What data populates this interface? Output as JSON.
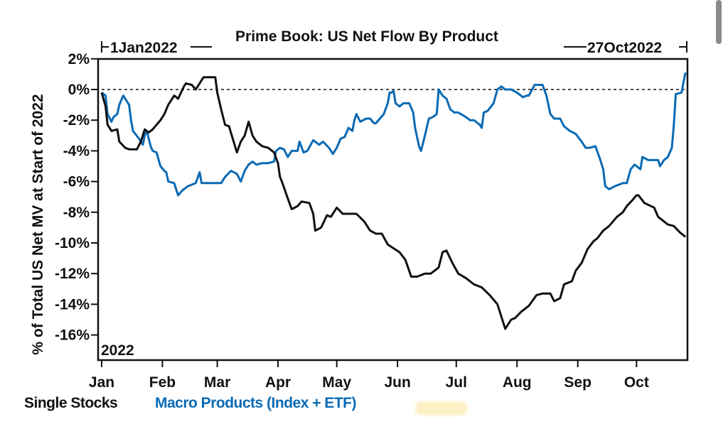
{
  "chart_data": {
    "type": "line",
    "title": "Prime Book: US Net Flow By Product",
    "start_label": "1Jan2022",
    "end_label": "27Oct2022",
    "year_label": "2022",
    "xlabel": "",
    "ylabel": "% of Total US Net MV at Start of 2022",
    "x_unit": "day_of_year_2022",
    "xlim": [
      0,
      299
    ],
    "ylim": [
      -17.5,
      2
    ],
    "y_ticks": [
      2,
      0,
      -2,
      -4,
      -6,
      -8,
      -10,
      -12,
      -14,
      -16
    ],
    "y_tick_labels": [
      "2%",
      "0%",
      "-2%",
      "-4%",
      "-6%",
      "-8%",
      "-10%",
      "-12%",
      "-14%",
      "-16%"
    ],
    "x_ticks": [
      0,
      31,
      59,
      90,
      120,
      151,
      181,
      212,
      243,
      273
    ],
    "x_tick_labels": [
      "Jan",
      "Feb",
      "Mar",
      "Apr",
      "May",
      "Jun",
      "Jul",
      "Aug",
      "Sep",
      "Oct"
    ],
    "reference_line": {
      "y": 0,
      "style": "dashed"
    },
    "grid": false,
    "legend_position": "bottom-left",
    "series": [
      {
        "name": "Single Stocks",
        "color": "#111111",
        "x": [
          0,
          2,
          3,
          5,
          8,
          9,
          12,
          14,
          18,
          20,
          22,
          24,
          26,
          30,
          32,
          34,
          37,
          39,
          42,
          43,
          46,
          48,
          52,
          55,
          58,
          59,
          61,
          63,
          65,
          69,
          71,
          73,
          75,
          77,
          79,
          82,
          85,
          88,
          90,
          91,
          92,
          95,
          97,
          100,
          102,
          106,
          108,
          109,
          112,
          115,
          117,
          120,
          123,
          127,
          130,
          134,
          137,
          140,
          143,
          146,
          152,
          155,
          158,
          161,
          165,
          168,
          172,
          174,
          176,
          179,
          182,
          186,
          190,
          194,
          198,
          202,
          205,
          206,
          209,
          211,
          214,
          218,
          222,
          225,
          229,
          231,
          234,
          236,
          240,
          242,
          245,
          248,
          251,
          253,
          256,
          259,
          263,
          266,
          268,
          271,
          273,
          274,
          277,
          282,
          284,
          289,
          292,
          295,
          298
        ],
        "values": [
          -0.2,
          -1.1,
          -2.3,
          -2.7,
          -2.6,
          -3.4,
          -3.8,
          -3.9,
          -3.9,
          -3.4,
          -2.6,
          -2.8,
          -2.6,
          -2.0,
          -1.6,
          -1.0,
          -0.4,
          -0.6,
          0.2,
          0.4,
          0.3,
          0.0,
          0.8,
          0.8,
          0.8,
          -0.2,
          -1.3,
          -2.3,
          -2.4,
          -4.1,
          -3.4,
          -3.0,
          -2.1,
          -3.0,
          -3.4,
          -3.7,
          -3.8,
          -4.1,
          -4.8,
          -5.7,
          -6.0,
          -7.1,
          -7.8,
          -7.6,
          -7.3,
          -7.4,
          -8.1,
          -9.2,
          -9.0,
          -8.2,
          -8.3,
          -7.7,
          -8.1,
          -8.1,
          -8.1,
          -8.6,
          -9.2,
          -9.4,
          -9.4,
          -10.1,
          -10.6,
          -11.1,
          -12.2,
          -12.2,
          -12.0,
          -12.0,
          -11.6,
          -10.6,
          -10.5,
          -11.3,
          -12.0,
          -12.3,
          -12.7,
          -12.9,
          -13.4,
          -14.0,
          -15.2,
          -15.6,
          -15.0,
          -14.9,
          -14.5,
          -14.1,
          -13.4,
          -13.3,
          -13.3,
          -13.8,
          -13.6,
          -12.7,
          -12.5,
          -11.8,
          -11.3,
          -10.4,
          -9.9,
          -9.7,
          -9.2,
          -8.9,
          -8.3,
          -8.0,
          -7.6,
          -7.2,
          -6.9,
          -6.9,
          -7.4,
          -7.7,
          -8.3,
          -8.8,
          -8.9,
          -9.3,
          -9.6
        ]
      },
      {
        "name": "Macro Products (Index + ETF)",
        "color": "#0a6ab4",
        "x": [
          0,
          2,
          3,
          5,
          6,
          8,
          9,
          11,
          12,
          14,
          15,
          16,
          19,
          21,
          22,
          23,
          25,
          26,
          28,
          30,
          32,
          33,
          34,
          37,
          39,
          41,
          44,
          48,
          50,
          51,
          53,
          57,
          61,
          63,
          66,
          69,
          71,
          73,
          75,
          77,
          79,
          82,
          85,
          88,
          89,
          91,
          93,
          95,
          97,
          100,
          101,
          103,
          105,
          108,
          111,
          113,
          116,
          118,
          120,
          122,
          124,
          126,
          128,
          129,
          130,
          132,
          135,
          137,
          139,
          140,
          142,
          144,
          146,
          147,
          148,
          149,
          150,
          152,
          154,
          157,
          159,
          160,
          162,
          163,
          165,
          167,
          169,
          171,
          172,
          174,
          176,
          178,
          180,
          182,
          186,
          188,
          190,
          193,
          194,
          195,
          197,
          200,
          202,
          204,
          206,
          209,
          212,
          215,
          217,
          218,
          221,
          225,
          227,
          229,
          231,
          234,
          236,
          239,
          242,
          245,
          247,
          249,
          252,
          254,
          256,
          257,
          259,
          262,
          266,
          268,
          270,
          272,
          275,
          276,
          279,
          282,
          284,
          285,
          287,
          289,
          291,
          292,
          293,
          296,
          297,
          298
        ],
        "values": [
          -0.2,
          -0.4,
          -1.6,
          -2.1,
          -1.8,
          -1.6,
          -1.0,
          -0.4,
          -0.6,
          -1.0,
          -2.0,
          -2.7,
          -3.2,
          -3.6,
          -3.0,
          -2.7,
          -3.7,
          -4.0,
          -4.1,
          -5.0,
          -5.3,
          -5.4,
          -6.0,
          -6.1,
          -6.9,
          -6.6,
          -6.3,
          -6.1,
          -5.4,
          -6.1,
          -6.1,
          -6.1,
          -6.1,
          -5.7,
          -5.3,
          -5.5,
          -6.0,
          -5.3,
          -4.9,
          -4.7,
          -4.9,
          -4.8,
          -4.8,
          -4.7,
          -4.0,
          -3.8,
          -3.9,
          -4.4,
          -4.0,
          -4.0,
          -3.4,
          -4.1,
          -4.0,
          -3.3,
          -3.6,
          -3.4,
          -3.8,
          -4.2,
          -3.8,
          -3.2,
          -3.1,
          -2.5,
          -2.7,
          -2.0,
          -1.6,
          -2.1,
          -1.9,
          -1.9,
          -2.2,
          -2.2,
          -1.9,
          -1.6,
          -0.9,
          -0.2,
          -0.2,
          -0.1,
          -0.9,
          -1.1,
          -0.9,
          -0.9,
          -1.5,
          -2.5,
          -3.7,
          -4.0,
          -3.0,
          -1.9,
          -1.8,
          -1.6,
          0.0,
          -0.4,
          -0.6,
          -1.3,
          -1.5,
          -1.5,
          -1.8,
          -2.0,
          -2.0,
          -2.3,
          -2.5,
          -1.5,
          -1.4,
          -0.9,
          0.0,
          0.2,
          0.0,
          0.0,
          -0.2,
          -0.5,
          -0.4,
          -0.4,
          0.3,
          0.3,
          -0.4,
          -1.6,
          -1.9,
          -1.9,
          -2.4,
          -2.7,
          -2.9,
          -3.4,
          -3.8,
          -3.8,
          -3.7,
          -4.4,
          -5.2,
          -6.3,
          -6.5,
          -6.3,
          -6.1,
          -6.1,
          -5.2,
          -4.9,
          -5.2,
          -4.4,
          -4.6,
          -4.6,
          -4.6,
          -5.0,
          -4.6,
          -4.4,
          -3.8,
          -2.4,
          -0.3,
          -0.2,
          0.5,
          1.1
        ]
      }
    ]
  },
  "legend": {
    "items": [
      {
        "label": "Single Stocks",
        "color": "#111111"
      },
      {
        "label": "Macro Products (Index + ETF)",
        "color": "#0a6ab4"
      }
    ]
  }
}
